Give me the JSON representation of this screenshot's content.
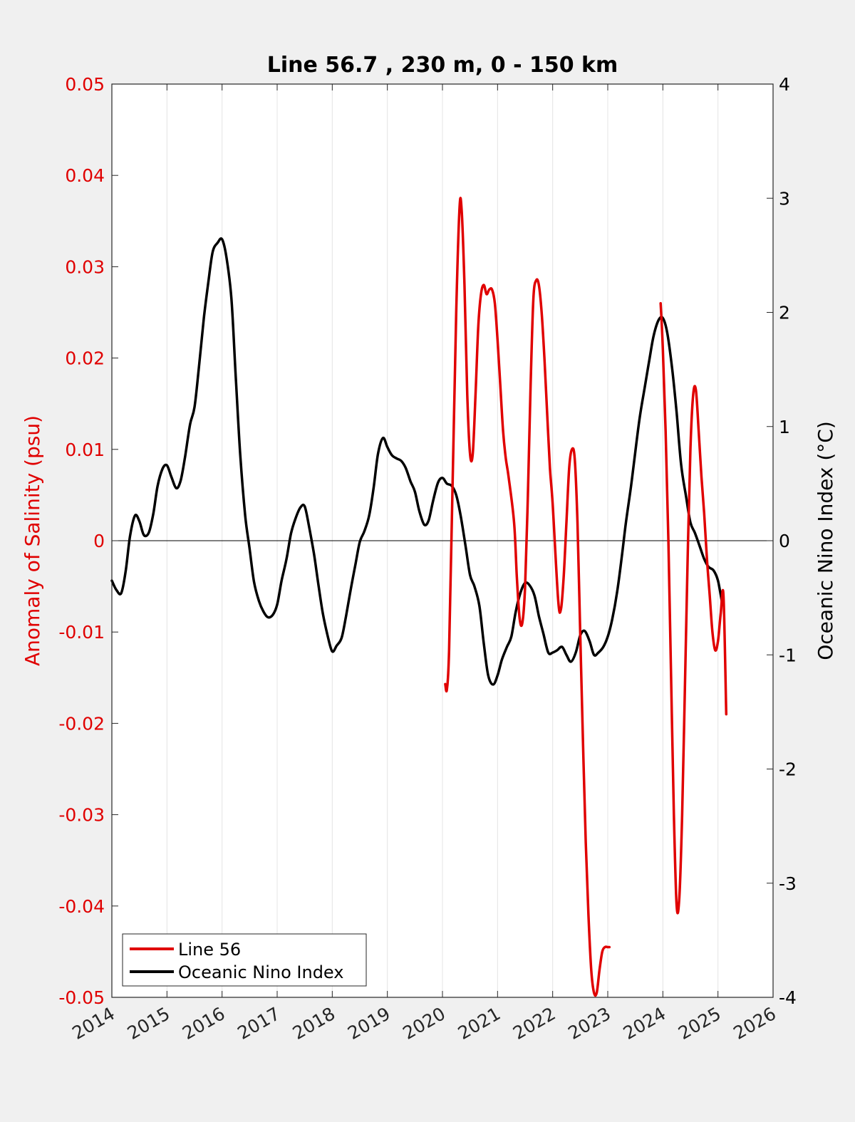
{
  "chart_data": {
    "type": "line",
    "title": "Line 56.7 , 230 m, 0 - 150 km",
    "ylabel_left": "Anomaly of Salinity (psu)",
    "ylabel_right": "Oceanic Nino Index (°C)",
    "xlim": [
      2014,
      2026
    ],
    "ylim_left": [
      -0.05,
      0.05
    ],
    "ylim_right": [
      -4,
      4
    ],
    "x_ticks": [
      "2014",
      "2015",
      "2016",
      "2017",
      "2018",
      "2019",
      "2020",
      "2021",
      "2022",
      "2023",
      "2024",
      "2025",
      "2026"
    ],
    "y_ticks_left": [
      "0.05",
      "0.04",
      "0.03",
      "0.02",
      "0.01",
      "0",
      "-0.01",
      "-0.02",
      "-0.03",
      "-0.04",
      "-0.05"
    ],
    "y_ticks_right": [
      "4",
      "3",
      "2",
      "1",
      "0",
      "-1",
      "-2",
      "-3",
      "-4"
    ],
    "grid": "vertical",
    "legend_position": "bottom-left",
    "series": [
      {
        "name": "Line 56",
        "axis": "left",
        "color": "#e00000",
        "x": [
          2020.05,
          2020.08,
          2020.12,
          2020.18,
          2020.25,
          2020.31,
          2020.35,
          2020.4,
          2020.45,
          2020.5,
          2020.55,
          2020.6,
          2020.65,
          2020.7,
          2020.75,
          2020.8,
          2020.85,
          2020.9,
          2020.95,
          2021.0,
          2021.05,
          2021.1,
          2021.15,
          2021.2,
          2021.3,
          2021.35,
          2021.4,
          2021.45,
          2021.5,
          2021.55,
          2021.6,
          2021.65,
          2021.7,
          2021.75,
          2021.8,
          2021.85,
          2021.9,
          2021.95,
          2022.0,
          2022.1,
          2022.15,
          2022.2,
          2022.25,
          2022.3,
          2022.35,
          2022.4,
          2022.45,
          2022.5,
          2022.55,
          2022.6,
          2022.65,
          2022.7,
          2022.75,
          2022.8,
          2022.85,
          2022.9,
          2022.95,
          2023.0,
          2023.03,
          2023.96,
          2024.0,
          2024.05,
          2024.1,
          2024.15,
          2024.2,
          2024.25,
          2024.3,
          2024.35,
          2024.4,
          2024.45,
          2024.5,
          2024.55,
          2024.6,
          2024.65,
          2024.7,
          2024.75,
          2024.8,
          2024.85,
          2024.9,
          2024.95,
          2025.0,
          2025.05,
          2025.1,
          2025.15
        ],
        "values": [
          -0.0157,
          -0.0163,
          -0.012,
          0.005,
          0.025,
          0.0365,
          0.036,
          0.028,
          0.016,
          0.0095,
          0.0095,
          0.016,
          0.0235,
          0.027,
          0.028,
          0.027,
          0.0275,
          0.0275,
          0.026,
          0.022,
          0.017,
          0.012,
          0.009,
          0.007,
          0.002,
          -0.004,
          -0.0085,
          -0.009,
          -0.005,
          0.005,
          0.017,
          0.0265,
          0.0285,
          0.028,
          0.025,
          0.02,
          0.014,
          0.008,
          0.004,
          -0.0065,
          -0.0075,
          -0.004,
          0.002,
          0.008,
          0.01,
          0.009,
          0.002,
          -0.01,
          -0.022,
          -0.033,
          -0.041,
          -0.047,
          -0.0495,
          -0.0495,
          -0.047,
          -0.045,
          -0.0445,
          -0.0445,
          -0.0445,
          0.026,
          0.021,
          0.012,
          0.0,
          -0.015,
          -0.03,
          -0.04,
          -0.039,
          -0.03,
          -0.016,
          -0.002,
          0.01,
          0.016,
          0.0165,
          0.012,
          0.007,
          0.003,
          -0.002,
          -0.006,
          -0.01,
          -0.012,
          -0.011,
          -0.008,
          -0.006,
          -0.019
        ]
      },
      {
        "name": "Oceanic Nino Index",
        "axis": "right",
        "color": "#000000",
        "x": [
          2014.0,
          2014.08,
          2014.17,
          2014.25,
          2014.33,
          2014.42,
          2014.5,
          2014.58,
          2014.67,
          2014.75,
          2014.83,
          2014.92,
          2015.0,
          2015.08,
          2015.17,
          2015.25,
          2015.33,
          2015.42,
          2015.5,
          2015.58,
          2015.67,
          2015.75,
          2015.83,
          2015.92,
          2016.0,
          2016.08,
          2016.17,
          2016.25,
          2016.33,
          2016.42,
          2016.5,
          2016.58,
          2016.67,
          2016.75,
          2016.83,
          2016.92,
          2017.0,
          2017.08,
          2017.17,
          2017.25,
          2017.33,
          2017.42,
          2017.5,
          2017.58,
          2017.67,
          2017.75,
          2017.83,
          2017.92,
          2018.0,
          2018.08,
          2018.17,
          2018.25,
          2018.33,
          2018.42,
          2018.5,
          2018.58,
          2018.67,
          2018.75,
          2018.83,
          2018.92,
          2019.0,
          2019.08,
          2019.17,
          2019.25,
          2019.33,
          2019.42,
          2019.5,
          2019.58,
          2019.67,
          2019.75,
          2019.83,
          2019.92,
          2020.0,
          2020.08,
          2020.17,
          2020.25,
          2020.33,
          2020.42,
          2020.5,
          2020.58,
          2020.67,
          2020.75,
          2020.83,
          2020.92,
          2021.0,
          2021.08,
          2021.17,
          2021.25,
          2021.33,
          2021.42,
          2021.5,
          2021.58,
          2021.67,
          2021.75,
          2021.83,
          2021.92,
          2022.0,
          2022.08,
          2022.17,
          2022.25,
          2022.33,
          2022.42,
          2022.5,
          2022.58,
          2022.67,
          2022.75,
          2022.83,
          2022.92,
          2023.0,
          2023.08,
          2023.17,
          2023.25,
          2023.33,
          2023.42,
          2023.5,
          2023.58,
          2023.67,
          2023.75,
          2023.83,
          2023.92,
          2024.0,
          2024.08,
          2024.17,
          2024.25,
          2024.33,
          2024.42,
          2024.5,
          2024.58,
          2024.67,
          2024.75,
          2024.83,
          2024.92,
          2025.0,
          2025.08
        ],
        "values": [
          -0.35,
          -0.43,
          -0.46,
          -0.27,
          0.04,
          0.22,
          0.17,
          0.05,
          0.07,
          0.23,
          0.48,
          0.63,
          0.66,
          0.56,
          0.46,
          0.53,
          0.74,
          1.02,
          1.17,
          1.52,
          1.95,
          2.26,
          2.53,
          2.61,
          2.64,
          2.48,
          2.12,
          1.42,
          0.75,
          0.22,
          -0.07,
          -0.36,
          -0.53,
          -0.62,
          -0.67,
          -0.65,
          -0.56,
          -0.35,
          -0.16,
          0.06,
          0.19,
          0.29,
          0.3,
          0.12,
          -0.12,
          -0.39,
          -0.64,
          -0.84,
          -0.97,
          -0.92,
          -0.85,
          -0.66,
          -0.44,
          -0.21,
          -0.01,
          0.08,
          0.22,
          0.46,
          0.76,
          0.9,
          0.82,
          0.75,
          0.72,
          0.7,
          0.64,
          0.52,
          0.43,
          0.26,
          0.14,
          0.18,
          0.35,
          0.51,
          0.55,
          0.5,
          0.48,
          0.4,
          0.22,
          -0.05,
          -0.3,
          -0.4,
          -0.57,
          -0.9,
          -1.18,
          -1.26,
          -1.18,
          -1.04,
          -0.93,
          -0.84,
          -0.62,
          -0.45,
          -0.37,
          -0.39,
          -0.48,
          -0.66,
          -0.81,
          -0.98,
          -0.98,
          -0.96,
          -0.93,
          -1.0,
          -1.06,
          -0.98,
          -0.83,
          -0.79,
          -0.88,
          -1.0,
          -0.98,
          -0.93,
          -0.84,
          -0.69,
          -0.45,
          -0.16,
          0.16,
          0.47,
          0.78,
          1.08,
          1.34,
          1.57,
          1.79,
          1.93,
          1.95,
          1.82,
          1.5,
          1.12,
          0.67,
          0.39,
          0.16,
          0.07,
          -0.05,
          -0.16,
          -0.23,
          -0.26,
          -0.35,
          -0.56
        ]
      }
    ]
  }
}
